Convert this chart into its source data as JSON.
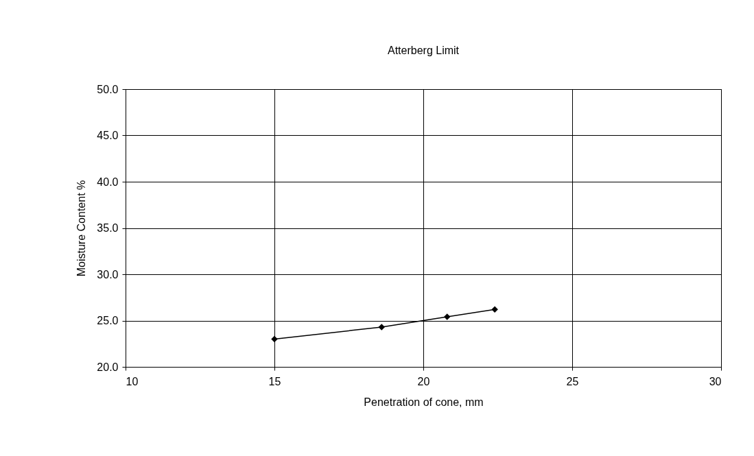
{
  "chart_data": {
    "type": "line",
    "title": "Atterberg Limit",
    "xlabel": "Penetration of cone, mm",
    "ylabel": "Moisture Content %",
    "x": [
      15,
      18.6,
      20.8,
      22.4
    ],
    "series": [
      {
        "color": "#000000",
        "values": [
          23.0,
          24.3,
          25.4,
          26.2
        ]
      }
    ],
    "xlim": [
      10,
      30
    ],
    "xticks": [
      10,
      15,
      20,
      25,
      30
    ],
    "ylim": [
      20,
      50
    ],
    "yticks": [
      {
        "value": 20,
        "label": "20.0"
      },
      {
        "value": 25,
        "label": "25.0"
      },
      {
        "value": 30,
        "label": "30.0"
      },
      {
        "value": 35,
        "label": "35.0"
      },
      {
        "value": 40,
        "label": "40.0"
      },
      {
        "value": 45,
        "label": "45.0"
      },
      {
        "value": 50,
        "label": "50.0"
      }
    ],
    "grid": true,
    "marker": "diamond",
    "line_style": "solid"
  }
}
